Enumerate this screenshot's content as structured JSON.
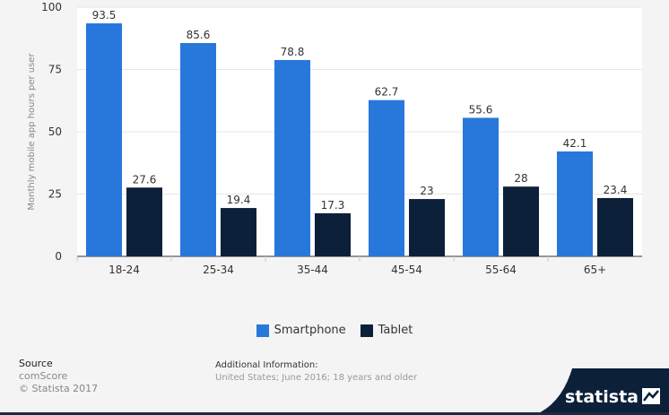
{
  "chart_data": {
    "type": "bar",
    "categories": [
      "18-24",
      "25-34",
      "35-44",
      "45-54",
      "55-64",
      "65+"
    ],
    "series": [
      {
        "name": "Smartphone",
        "values": [
          93.5,
          85.6,
          78.8,
          62.7,
          55.6,
          42.1
        ],
        "color": "#2877db"
      },
      {
        "name": "Tablet",
        "values": [
          27.6,
          19.4,
          17.3,
          23,
          28,
          23.4
        ],
        "color": "#0c2039"
      }
    ],
    "value_labels": [
      [
        "93.5",
        "85.6",
        "78.8",
        "62.7",
        "55.6",
        "42.1"
      ],
      [
        "27.6",
        "19.4",
        "17.3",
        "23",
        "28",
        "23.4"
      ]
    ],
    "ylabel": "Monthly mobile app hours per user",
    "xlabel": "",
    "ylim": [
      0,
      100
    ],
    "yticks": [
      "0",
      "25",
      "50",
      "75",
      "100"
    ],
    "ytick_values": [
      0,
      25,
      50,
      75,
      100
    ],
    "grid": true,
    "legend_position": "bottom-center"
  },
  "legend": {
    "smartphone": "Smartphone",
    "tablet": "Tablet",
    "smartphone_color": "#2877db",
    "tablet_color": "#0c2039"
  },
  "source": {
    "heading": "Source",
    "name": "comScore",
    "copyright": "© Statista 2017"
  },
  "additional_info": {
    "heading": "Additional Information:",
    "text": "United States; June 2016; 18 years and older"
  },
  "brand": {
    "name": "statista",
    "icon": "statista-logo-icon"
  }
}
